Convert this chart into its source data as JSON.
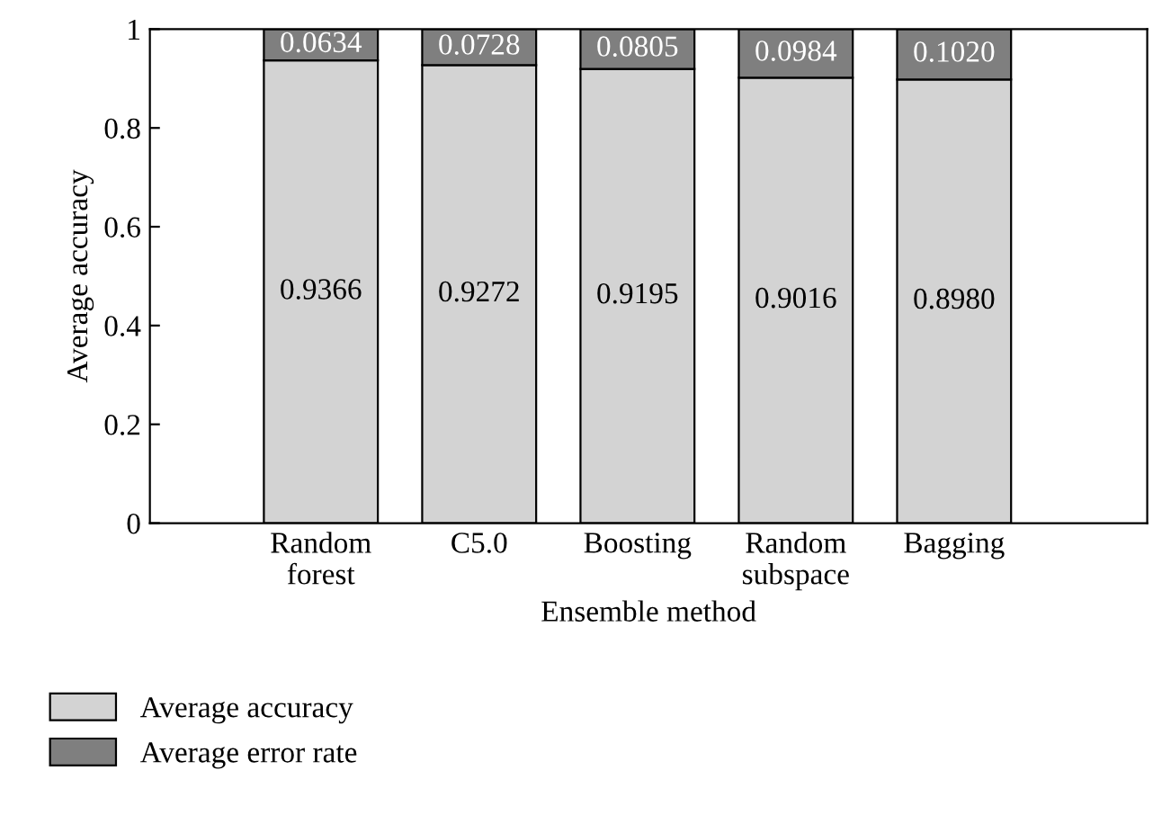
{
  "chart_data": {
    "type": "bar",
    "stacked": true,
    "xlabel": "Ensemble method",
    "ylabel": "Average accuracy",
    "categories": [
      "Random\nforest",
      "C5.0",
      "Boosting",
      "Random\nsubspace",
      "Bagging"
    ],
    "series": [
      {
        "name": "Average accuracy",
        "color": "#d3d3d3",
        "values": [
          0.9366,
          0.9272,
          0.9195,
          0.9016,
          0.898
        ],
        "value_labels": [
          "0.9366",
          "0.9272",
          "0.9195",
          "0.9016",
          "0.8980"
        ]
      },
      {
        "name": "Average error rate",
        "color": "#7f7f7f",
        "values": [
          0.0634,
          0.0728,
          0.0805,
          0.0984,
          0.102
        ],
        "value_labels": [
          "0.0634",
          "0.0728",
          "0.0805",
          "0.0984",
          "0.1020"
        ]
      }
    ],
    "ylim": [
      0,
      1
    ],
    "yticks": [
      0,
      0.2,
      0.4,
      0.6,
      0.8,
      1
    ],
    "grid": false,
    "legend": "bottom left"
  }
}
